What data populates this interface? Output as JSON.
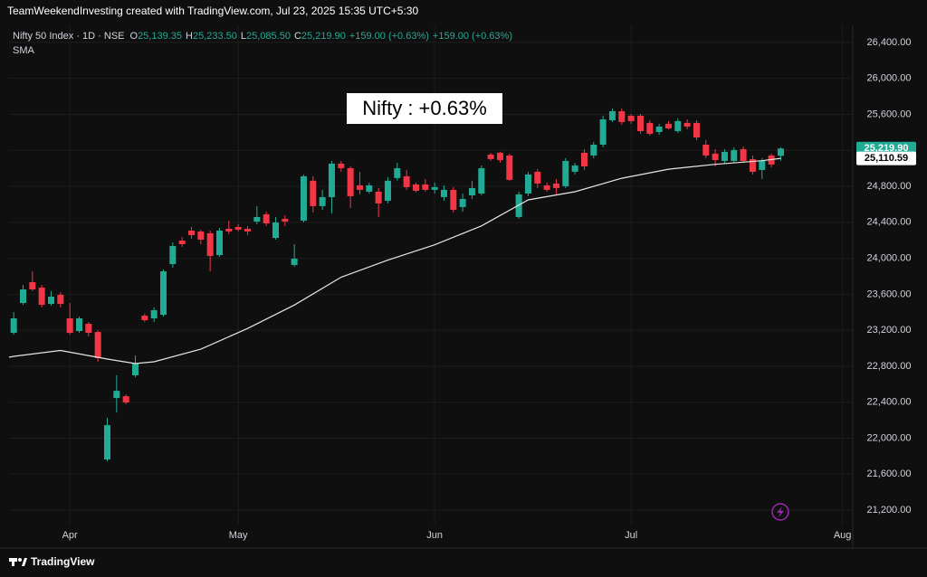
{
  "header": {
    "caption": "TeamWeekendInvesting created with TradingView.com, Jul 23, 2025 15:35 UTC+5:30"
  },
  "legend": {
    "symbol": "Nifty 50 Index · 1D · NSE",
    "fields": [
      {
        "key": "O",
        "text": "25,139.35"
      },
      {
        "key": "H",
        "text": "25,233.50"
      },
      {
        "key": "L",
        "text": "25,085.50"
      },
      {
        "key": "C",
        "text": "25,219.90"
      }
    ],
    "change": "+159.00 (+0.63%)",
    "change2": "+159.00 (+0.63%)"
  },
  "footer": {
    "brand": "TradingView"
  },
  "chart_data": {
    "type": "candlestick",
    "annotation": "Nifty : +0.63%",
    "up_color": "#22ab94",
    "down_color": "#f23645",
    "grid": true,
    "ylim": [
      21040,
      26590
    ],
    "yticks": [
      {
        "value": 21200,
        "label": "21,200.00"
      },
      {
        "value": 21600,
        "label": "21,600.00"
      },
      {
        "value": 22000,
        "label": "22,000.00"
      },
      {
        "value": 22400,
        "label": "22,400.00"
      },
      {
        "value": 22800,
        "label": "22,800.00"
      },
      {
        "value": 23200,
        "label": "23,200.00"
      },
      {
        "value": 23600,
        "label": "23,600.00"
      },
      {
        "value": 24000,
        "label": "24,000.00"
      },
      {
        "value": 24400,
        "label": "24,400.00"
      },
      {
        "value": 24800,
        "label": "24,800.00"
      },
      {
        "value": 25200,
        "label": "25,200.00"
      },
      {
        "value": 25600,
        "label": "25,600.00"
      },
      {
        "value": 26000,
        "label": "26,000.00"
      },
      {
        "value": 26400,
        "label": "26,400.00"
      }
    ],
    "xlim": [
      -0.5,
      89.7
    ],
    "xticks": [
      {
        "value": 6,
        "label": "Apr"
      },
      {
        "value": 24,
        "label": "May"
      },
      {
        "value": 45,
        "label": "Jun"
      },
      {
        "value": 66,
        "label": "Jul"
      },
      {
        "value": 88.6,
        "label": "Aug"
      }
    ],
    "open": [
      23171,
      23503,
      23735,
      23674,
      23493,
      23594,
      23332,
      23191,
      23272,
      23181,
      21763,
      22447,
      22467,
      22699,
      23362,
      23332,
      23372,
      23936,
      24197,
      24308,
      24298,
      24278,
      24036,
      24328,
      24348,
      24328,
      24408,
      24489,
      24227,
      24439,
      23926,
      24419,
      24862,
      24580,
      24680,
      25052,
      25002,
      24811,
      24741,
      24741,
      24640,
      24892,
      24912,
      24821,
      24821,
      24761,
      24680,
      24761,
      24570,
      24700,
      24720,
      25153,
      25173,
      25143,
      24459,
      24720,
      24962,
      24811,
      24831,
      24801,
      24962,
      25173,
      25143,
      25263,
      25535,
      25635,
      25585,
      25585,
      25505,
      25404,
      25495,
      25414,
      25505,
      25505,
      25263,
      25163,
      25082,
      25082,
      25213,
      25103,
      24982,
      25143,
      25139.35
    ],
    "high": [
      23403,
      23704,
      23855,
      23704,
      23634,
      23624,
      23503,
      23352,
      23292,
      23201,
      22226,
      22699,
      22487,
      22920,
      23382,
      23453,
      23875,
      24177,
      24238,
      24348,
      24318,
      24308,
      24338,
      24419,
      24379,
      24358,
      24579,
      24519,
      24459,
      24479,
      24157,
      24932,
      24912,
      24761,
      25082,
      25082,
      25022,
      24962,
      24841,
      24781,
      24902,
      25062,
      24982,
      24841,
      24882,
      24841,
      24811,
      24791,
      24720,
      24862,
      25032,
      25173,
      25183,
      25163,
      24741,
      24962,
      24992,
      24841,
      24882,
      25113,
      25062,
      25213,
      25294,
      25585,
      25666,
      25666,
      25605,
      25605,
      25535,
      25495,
      25525,
      25555,
      25545,
      25535,
      25314,
      25213,
      25213,
      25233,
      25243,
      25143,
      25113,
      25163,
      25233.5
    ],
    "low": [
      23151,
      23483,
      23634,
      23453,
      23473,
      23453,
      23151,
      23171,
      23131,
      22850,
      21743,
      22286,
      22377,
      22678,
      23292,
      23292,
      23352,
      23896,
      24127,
      24218,
      24157,
      23855,
      24016,
      24268,
      24298,
      24258,
      24378,
      24358,
      24207,
      24358,
      23906,
      24398,
      24509,
      24539,
      24499,
      24962,
      24559,
      24710,
      24720,
      24459,
      24610,
      24862,
      24761,
      24731,
      24741,
      24720,
      24640,
      24509,
      24519,
      24660,
      24700,
      25082,
      25062,
      24862,
      24439,
      24690,
      24781,
      24741,
      24710,
      24781,
      24932,
      24982,
      25113,
      25233,
      25515,
      25485,
      25495,
      25384,
      25364,
      25374,
      25434,
      25394,
      25434,
      25314,
      25113,
      25022,
      25052,
      25062,
      25062,
      24932,
      24882,
      25012,
      25085.5
    ],
    "close": [
      23332,
      23654,
      23654,
      23483,
      23573,
      23493,
      23171,
      23332,
      23171,
      22890,
      22145,
      22527,
      22397,
      22829,
      23312,
      23423,
      23855,
      24137,
      24157,
      24258,
      24207,
      24026,
      24308,
      24298,
      24318,
      24298,
      24459,
      24388,
      24399,
      24408,
      23996,
      24912,
      24580,
      24680,
      25052,
      25002,
      24690,
      24761,
      24811,
      24610,
      24862,
      25002,
      24791,
      24751,
      24761,
      24791,
      24761,
      24539,
      24660,
      24781,
      25002,
      25103,
      25092,
      24872,
      24710,
      24932,
      24831,
      24761,
      24781,
      25082,
      25032,
      25022,
      25263,
      25545,
      25635,
      25515,
      25525,
      25414,
      25384,
      25464,
      25444,
      25525,
      25464,
      25344,
      25143,
      25092,
      25183,
      25203,
      25082,
      24962,
      25082,
      25042,
      25219.9
    ],
    "sma": {
      "name": "SMA",
      "color": "#e6e6e6",
      "x": [
        -0.5,
        0,
        5,
        10,
        13,
        15,
        20,
        25,
        30,
        35,
        40,
        45,
        50,
        55,
        60,
        65,
        70,
        75,
        80,
        82
      ],
      "values": [
        22900,
        22910,
        22975,
        22880,
        22830,
        22850,
        22990,
        23220,
        23480,
        23790,
        23980,
        24150,
        24360,
        24650,
        24740,
        24890,
        24990,
        25045,
        25085,
        25110.59
      ]
    },
    "price_badges": [
      {
        "value": 25219.9,
        "label": "25,219.90",
        "color": "#22ab94",
        "text_color": "#ffffff"
      },
      {
        "value": 25110.59,
        "label": "25,110.59",
        "color": "#ffffff",
        "text_color": "#000000"
      }
    ]
  }
}
